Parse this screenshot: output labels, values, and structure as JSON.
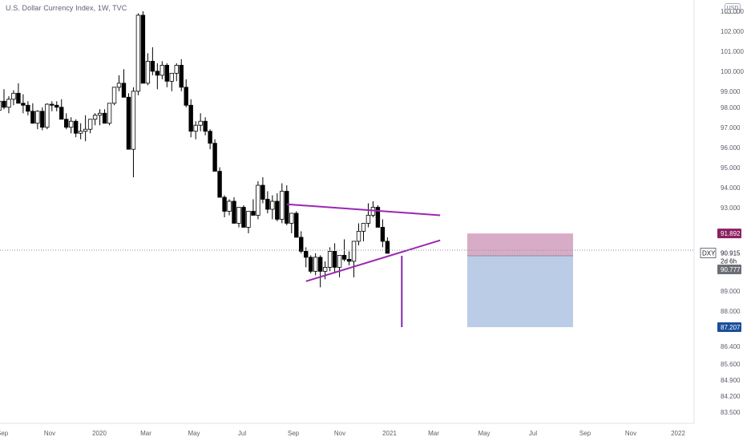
{
  "title": "U.S. Dollar Currency Index, 1W, TVC",
  "currency": "USD",
  "chart_data": {
    "type": "candlestick",
    "symbol": "DXY",
    "timeframe": "1W",
    "y_ticks": [
      "103.000",
      "102.000",
      "101.000",
      "100.000",
      "99.000",
      "98.000",
      "97.000",
      "96.000",
      "95.000",
      "94.000",
      "93.000",
      "89.000",
      "88.000",
      "86.400",
      "85.600",
      "84.900",
      "84.200",
      "83.500"
    ],
    "x_ticks": [
      "Sep",
      "Nov",
      "2020",
      "Mar",
      "May",
      "Jul",
      "Sep",
      "Nov",
      "2021",
      "Mar",
      "May",
      "Jul",
      "Sep",
      "Nov",
      "2022"
    ],
    "price_labels": [
      {
        "id": "stop",
        "text": "91.892",
        "color": "#8b1f61"
      },
      {
        "id": "last",
        "text": "90.915",
        "color": "#131722"
      },
      {
        "id": "countdown",
        "text": "2d 6h",
        "color": "#131722"
      },
      {
        "id": "entry",
        "text": "90.777",
        "color": "#6b6f76"
      },
      {
        "id": "target",
        "text": "87.207",
        "color": "#1c4e9a"
      }
    ],
    "symbol_tag": "DXY",
    "last_price": 90.915,
    "position": {
      "side": "short",
      "entry": 90.777,
      "stop": 91.892,
      "target": 87.207,
      "profit_color": "#b7c9e6",
      "risk_color": "#d4a3c1"
    },
    "trendlines": [
      {
        "name": "resistance",
        "color": "#9b27b0",
        "points": [
          [
            "2020-11-06",
            93.35
          ],
          [
            "2021-06-18",
            92.8
          ]
        ]
      },
      {
        "name": "support",
        "color": "#9b27b0",
        "points": [
          [
            "2020-12-04",
            89.5
          ],
          [
            "2021-06-18",
            91.55
          ]
        ]
      }
    ],
    "vertical_line": {
      "date": "2021-04-23",
      "color": "#7d2aa8"
    },
    "candles_ohlc": [
      [
        98.05,
        98.6,
        97.75,
        98.5
      ],
      [
        98.5,
        99.1,
        98.1,
        98.2
      ],
      [
        98.2,
        98.75,
        97.9,
        98.6
      ],
      [
        98.6,
        99.05,
        98.3,
        98.9
      ],
      [
        98.9,
        99.4,
        98.5,
        98.4
      ],
      [
        98.4,
        98.85,
        97.9,
        98.3
      ],
      [
        98.3,
        98.5,
        97.8,
        98.0
      ],
      [
        98.0,
        98.4,
        97.5,
        97.4
      ],
      [
        97.4,
        98.05,
        97.1,
        98.0
      ],
      [
        98.0,
        98.2,
        97.05,
        97.2
      ],
      [
        97.2,
        98.4,
        97.1,
        98.35
      ],
      [
        98.35,
        98.5,
        98.0,
        98.3
      ],
      [
        98.3,
        98.5,
        98.0,
        98.2
      ],
      [
        98.2,
        98.6,
        97.8,
        97.6
      ],
      [
        97.6,
        97.9,
        97.1,
        97.2
      ],
      [
        97.2,
        97.7,
        96.9,
        97.5
      ],
      [
        97.5,
        97.6,
        96.7,
        96.9
      ],
      [
        96.9,
        97.4,
        96.6,
        97.0
      ],
      [
        97.0,
        97.8,
        96.5,
        97.1
      ],
      [
        97.1,
        97.6,
        96.9,
        97.6
      ],
      [
        97.6,
        97.9,
        97.3,
        97.8
      ],
      [
        97.8,
        98.1,
        97.3,
        97.9
      ],
      [
        97.9,
        98.1,
        97.4,
        97.4
      ],
      [
        97.4,
        98.4,
        97.3,
        98.4
      ],
      [
        98.4,
        99.2,
        98.3,
        99.2
      ],
      [
        99.2,
        99.8,
        99.0,
        99.4
      ],
      [
        99.4,
        100.1,
        98.7,
        98.7
      ],
      [
        98.7,
        98.9,
        96.1,
        96.1
      ],
      [
        96.1,
        99.2,
        94.7,
        99.0
      ],
      [
        99.0,
        102.9,
        98.8,
        102.8
      ],
      [
        102.8,
        103.0,
        99.4,
        99.4
      ],
      [
        99.4,
        100.9,
        99.3,
        100.5
      ],
      [
        100.5,
        101.2,
        99.8,
        100.0
      ],
      [
        100.0,
        100.4,
        99.1,
        99.8
      ],
      [
        99.8,
        100.5,
        99.6,
        100.3
      ],
      [
        100.3,
        100.4,
        99.2,
        99.5
      ],
      [
        99.5,
        99.9,
        99.0,
        99.9
      ],
      [
        99.9,
        100.4,
        99.5,
        100.3
      ],
      [
        100.3,
        100.6,
        99.0,
        99.2
      ],
      [
        99.2,
        99.6,
        98.2,
        98.3
      ],
      [
        98.3,
        98.6,
        96.7,
        97.0
      ],
      [
        97.0,
        97.5,
        96.6,
        97.3
      ],
      [
        97.3,
        97.9,
        97.0,
        97.5
      ],
      [
        97.5,
        97.7,
        96.8,
        97.0
      ],
      [
        97.0,
        97.1,
        96.1,
        96.4
      ],
      [
        96.4,
        96.6,
        95.5,
        95.0
      ],
      [
        95.0,
        95.2,
        93.8,
        93.7
      ],
      [
        93.7,
        93.8,
        92.7,
        93.0
      ],
      [
        93.0,
        93.6,
        92.8,
        93.5
      ],
      [
        93.5,
        93.7,
        92.8,
        92.4
      ],
      [
        92.4,
        93.2,
        92.2,
        93.2
      ],
      [
        93.2,
        93.3,
        92.5,
        92.2
      ],
      [
        92.2,
        93.0,
        91.9,
        93.0
      ],
      [
        93.0,
        93.6,
        92.8,
        92.8
      ],
      [
        92.8,
        94.5,
        92.6,
        94.3
      ],
      [
        94.3,
        94.7,
        93.4,
        93.6
      ],
      [
        93.6,
        94.0,
        92.9,
        93.1
      ],
      [
        93.1,
        93.8,
        92.6,
        93.5
      ],
      [
        93.5,
        93.9,
        92.5,
        92.6
      ],
      [
        92.6,
        94.4,
        92.4,
        94.0
      ],
      [
        94.0,
        94.3,
        92.3,
        92.4
      ],
      [
        92.4,
        92.9,
        91.9,
        92.9
      ],
      [
        92.9,
        93.0,
        91.7,
        91.7
      ],
      [
        91.7,
        92.0,
        90.9,
        91.0
      ],
      [
        91.0,
        91.2,
        90.2,
        90.7
      ],
      [
        90.7,
        90.8,
        89.9,
        90.0
      ],
      [
        90.0,
        90.9,
        89.8,
        90.7
      ],
      [
        90.7,
        90.8,
        89.2,
        90.0
      ],
      [
        90.0,
        90.5,
        89.6,
        90.2
      ],
      [
        90.2,
        91.2,
        90.0,
        91.0
      ],
      [
        91.0,
        91.4,
        89.9,
        90.2
      ],
      [
        90.2,
        90.8,
        89.7,
        90.8
      ],
      [
        90.8,
        91.6,
        90.5,
        90.6
      ],
      [
        90.6,
        91.0,
        90.3,
        90.5
      ],
      [
        90.5,
        91.2,
        89.7,
        91.5
      ],
      [
        91.5,
        92.4,
        91.3,
        92.0
      ],
      [
        92.0,
        92.3,
        91.5,
        92.4
      ],
      [
        92.4,
        93.4,
        92.2,
        92.8
      ],
      [
        92.8,
        93.5,
        92.7,
        93.2
      ],
      [
        93.2,
        93.3,
        92.3,
        92.2
      ],
      [
        92.2,
        92.6,
        91.2,
        91.5
      ],
      [
        91.5,
        91.7,
        90.9,
        90.9
      ]
    ]
  }
}
